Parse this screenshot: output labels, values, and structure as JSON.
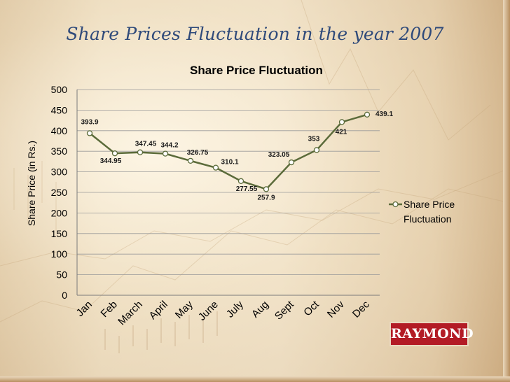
{
  "slide": {
    "title": "Share Prices Fluctuation in the year 2007",
    "logo": "RAYMOND"
  },
  "colors": {
    "title": "#2f4a7a",
    "line": "#5b6b3a",
    "logo_bg": "#b31b25"
  },
  "chart_data": {
    "type": "line",
    "title": "Share Price Fluctuation",
    "xlabel": "",
    "ylabel": "Share Price (in Rs.)",
    "categories": [
      "Jan",
      "Feb",
      "March",
      "April",
      "May",
      "June",
      "July",
      "Aug",
      "Sept",
      "Oct",
      "Nov",
      "Dec"
    ],
    "series": [
      {
        "name": "Share Price Fluctuation",
        "values": [
          393.9,
          344.95,
          347.45,
          344.2,
          326.75,
          310.1,
          277.55,
          257.9,
          323.05,
          353,
          421,
          439.1
        ]
      }
    ],
    "ylim": [
      0,
      500
    ],
    "yticks": [
      0,
      50,
      100,
      150,
      200,
      250,
      300,
      350,
      400,
      450,
      500
    ],
    "grid": true,
    "legend": "right",
    "data_labels": true
  }
}
